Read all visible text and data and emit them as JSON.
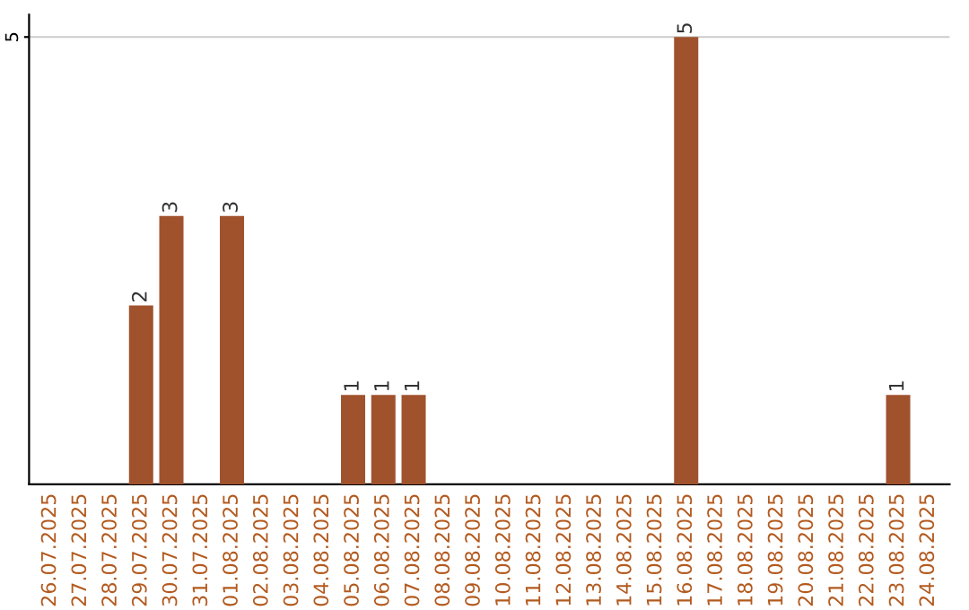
{
  "chart_data": {
    "type": "bar",
    "categories": [
      "26.07.2025",
      "27.07.2025",
      "28.07.2025",
      "29.07.2025",
      "30.07.2025",
      "31.07.2025",
      "01.08.2025",
      "02.08.2025",
      "03.08.2025",
      "04.08.2025",
      "05.08.2025",
      "06.08.2025",
      "07.08.2025",
      "08.08.2025",
      "09.08.2025",
      "10.08.2025",
      "11.08.2025",
      "12.08.2025",
      "13.08.2025",
      "14.08.2025",
      "15.08.2025",
      "16.08.2025",
      "17.08.2025",
      "18.08.2025",
      "19.08.2025",
      "20.08.2025",
      "21.08.2025",
      "22.08.2025",
      "23.08.2025",
      "24.08.2025"
    ],
    "values": [
      0,
      0,
      0,
      2,
      3,
      0,
      3,
      0,
      0,
      0,
      1,
      1,
      1,
      0,
      0,
      0,
      0,
      0,
      0,
      0,
      0,
      5,
      0,
      0,
      0,
      0,
      0,
      0,
      1,
      0
    ],
    "value_labels": [
      null,
      null,
      null,
      "2",
      "3",
      null,
      "3",
      null,
      null,
      null,
      "1",
      "1",
      "1",
      null,
      null,
      null,
      null,
      null,
      null,
      null,
      null,
      "5",
      null,
      null,
      null,
      null,
      null,
      null,
      "1",
      null
    ],
    "color": "#a0522d",
    "ylim": [
      0,
      5.25
    ],
    "yticks": [
      5
    ],
    "grid": "y"
  }
}
